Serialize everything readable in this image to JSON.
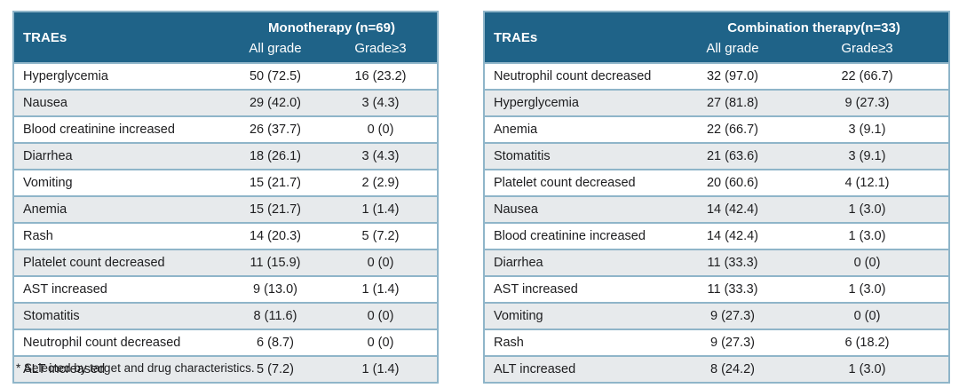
{
  "footnote": "* Selected by target and drug characteristics.",
  "colors": {
    "header_bg": "#1f6388",
    "header_text": "#ffffff",
    "border": "#8fb5c9",
    "row_stripe": "#e7eaec",
    "row_plain": "#ffffff",
    "body_text": "#1d1d1f"
  },
  "chart_data": [
    {
      "type": "table",
      "row_header": "TRAEs",
      "group_header": "Monotherapy (n=69)",
      "columns": [
        "All grade",
        "Grade≥3"
      ],
      "rows": [
        {
          "name": "Hyperglycemia",
          "all_grade": "50 (72.5)",
          "grade_ge3": "16 (23.2)"
        },
        {
          "name": "Nausea",
          "all_grade": "29 (42.0)",
          "grade_ge3": "3 (4.3)"
        },
        {
          "name": "Blood creatinine increased",
          "all_grade": "26 (37.7)",
          "grade_ge3": "0 (0)"
        },
        {
          "name": "Diarrhea",
          "all_grade": "18 (26.1)",
          "grade_ge3": "3 (4.3)"
        },
        {
          "name": "Vomiting",
          "all_grade": "15 (21.7)",
          "grade_ge3": "2 (2.9)"
        },
        {
          "name": "Anemia",
          "all_grade": "15 (21.7)",
          "grade_ge3": "1 (1.4)"
        },
        {
          "name": "Rash",
          "all_grade": "14 (20.3)",
          "grade_ge3": "5 (7.2)"
        },
        {
          "name": "Platelet count decreased",
          "all_grade": "11 (15.9)",
          "grade_ge3": "0 (0)"
        },
        {
          "name": "AST increased",
          "all_grade": "9 (13.0)",
          "grade_ge3": "1 (1.4)"
        },
        {
          "name": "Stomatitis",
          "all_grade": "8 (11.6)",
          "grade_ge3": "0 (0)"
        },
        {
          "name": "Neutrophil count decreased",
          "all_grade": "6 (8.7)",
          "grade_ge3": "0 (0)"
        },
        {
          "name": "ALT increased",
          "all_grade": "5 (7.2)",
          "grade_ge3": "1 (1.4)"
        }
      ]
    },
    {
      "type": "table",
      "row_header": "TRAEs",
      "group_header": "Combination therapy(n=33)",
      "columns": [
        "All grade",
        "Grade≥3"
      ],
      "rows": [
        {
          "name": "Neutrophil count decreased",
          "all_grade": "32 (97.0)",
          "grade_ge3": "22 (66.7)"
        },
        {
          "name": "Hyperglycemia",
          "all_grade": "27 (81.8)",
          "grade_ge3": "9 (27.3)"
        },
        {
          "name": "Anemia",
          "all_grade": "22 (66.7)",
          "grade_ge3": "3 (9.1)"
        },
        {
          "name": "Stomatitis",
          "all_grade": "21 (63.6)",
          "grade_ge3": "3 (9.1)"
        },
        {
          "name": "Platelet count decreased",
          "all_grade": "20 (60.6)",
          "grade_ge3": "4 (12.1)"
        },
        {
          "name": "Nausea",
          "all_grade": "14 (42.4)",
          "grade_ge3": "1 (3.0)"
        },
        {
          "name": "Blood creatinine increased",
          "all_grade": "14 (42.4)",
          "grade_ge3": "1 (3.0)"
        },
        {
          "name": "Diarrhea",
          "all_grade": "11 (33.3)",
          "grade_ge3": "0 (0)"
        },
        {
          "name": "AST increased",
          "all_grade": "11 (33.3)",
          "grade_ge3": "1 (3.0)"
        },
        {
          "name": "Vomiting",
          "all_grade": "9 (27.3)",
          "grade_ge3": "0 (0)"
        },
        {
          "name": "Rash",
          "all_grade": "9 (27.3)",
          "grade_ge3": "6 (18.2)"
        },
        {
          "name": "ALT increased",
          "all_grade": "8 (24.2)",
          "grade_ge3": "1 (3.0)"
        }
      ]
    }
  ]
}
